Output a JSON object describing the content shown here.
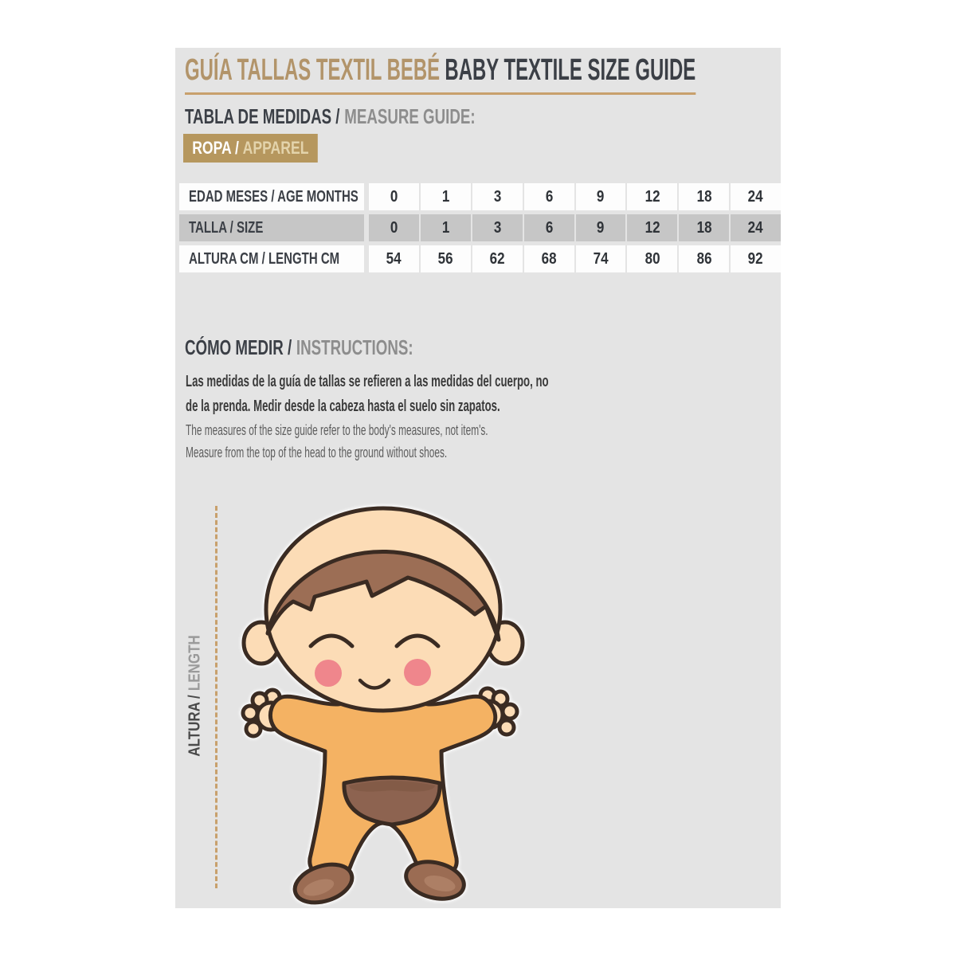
{
  "header": {
    "title_es": "GUÍA TALLAS TEXTIL BEBÉ",
    "title_en": "BABY TEXTILE SIZE GUIDE"
  },
  "measure_section": {
    "heading_es": "TABLA DE MEDIDAS /",
    "heading_en": "MEASURE GUIDE:",
    "badge_es": "ROPA /",
    "badge_en": "APPAREL"
  },
  "size_table": {
    "rows": [
      {
        "label": "EDAD MESES / AGE MONTHS",
        "shade": "white",
        "values": [
          "0",
          "1",
          "3",
          "6",
          "9",
          "12",
          "18",
          "24"
        ]
      },
      {
        "label": "TALLA / SIZE",
        "shade": "gray",
        "values": [
          "0",
          "1",
          "3",
          "6",
          "9",
          "12",
          "18",
          "24"
        ]
      },
      {
        "label": "ALTURA CM / LENGTH CM",
        "shade": "white",
        "values": [
          "54",
          "56",
          "62",
          "68",
          "74",
          "80",
          "86",
          "92"
        ]
      }
    ]
  },
  "instructions": {
    "heading_es": "CÓMO MEDIR /",
    "heading_en": "INSTRUCTIONS:",
    "text_es_lines": [
      "Las medidas de la guía de tallas se refieren a las medidas del cuerpo, no",
      "de la prenda. Medir desde la cabeza hasta el suelo sin zapatos."
    ],
    "text_en_lines": [
      "The measures of the size guide refer to the body's measures, not item's.",
      "Measure from the top of the head to the ground without shoes."
    ]
  },
  "measure_diagram": {
    "axis_label_es": "ALTURA /",
    "axis_label_en": "LENGTH",
    "illustration": "baby-illustration"
  },
  "colors": {
    "accent_gold": "#b6975e",
    "underline_gold": "#c8a06c",
    "dark_text": "#3b3f46",
    "muted_text": "#8d8d8d",
    "panel_background": "#e4e4e4",
    "table_row_gray": "#c6c6c6",
    "table_row_white": "#fdfdfd",
    "baby_skin": "#fcdcb6",
    "baby_hair": "#9c6e55",
    "baby_onesie": "#f4b263",
    "baby_patch": "#8d6350",
    "baby_cheeks": "#ef868c"
  }
}
